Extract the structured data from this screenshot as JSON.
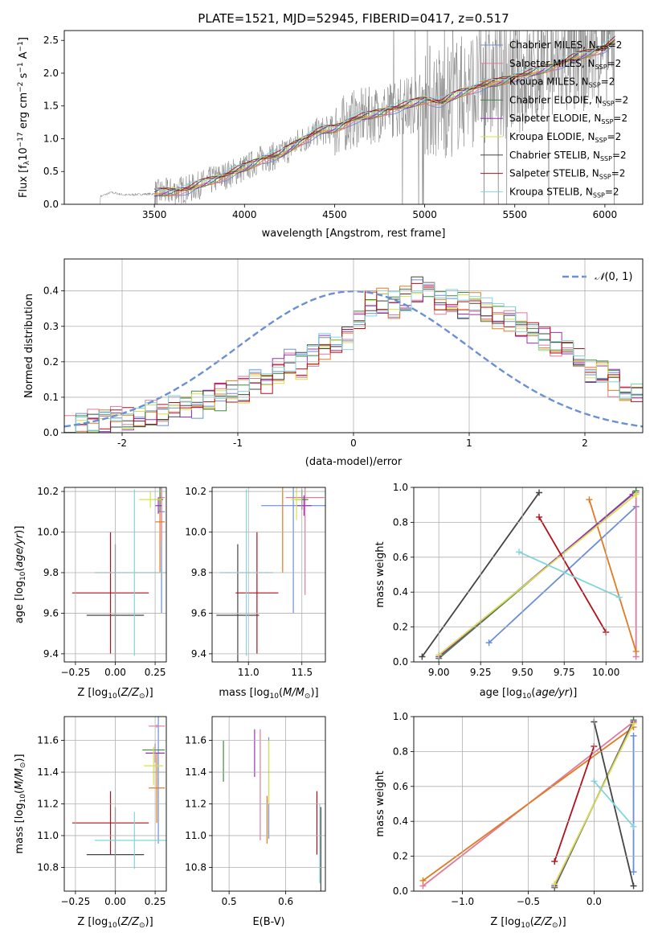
{
  "figure": {
    "title": "PLATE=1521, MJD=52945, FIBERID=0417, z=0.517"
  },
  "colors": {
    "cMILES": "#6a8fd6",
    "sMILES": "#e07a9a",
    "kMILES": "#e07b20",
    "cELODIE": "#3f8a3f",
    "sELODIE": "#9a2fb8",
    "kELODIE": "#d6e04a",
    "cSTELIB": "#444444",
    "sSTELIB": "#b30f1a",
    "kSTELIB": "#7fd6dc",
    "normal": "#6a8fd6",
    "spectrum": "#808080"
  },
  "chart_data": [
    {
      "id": "spectrum",
      "type": "line",
      "title": "PLATE=1521, MJD=52945, FIBERID=0417, z=0.517",
      "xlabel": "wavelength [Angstrom, rest frame]",
      "ylabel": "Flux [f_λ 10^-17 erg cm^-2 s^-1 A^-1]",
      "xlim": [
        3000,
        6210
      ],
      "ylim": [
        0,
        2.65
      ],
      "xticks": [
        3500,
        4000,
        4500,
        5000,
        5500,
        6000
      ],
      "yticks": [
        0.0,
        0.5,
        1.0,
        1.5,
        2.0,
        2.5
      ],
      "grid": false,
      "legend_position": "top-right",
      "continuum": {
        "x": [
          3200,
          3260,
          3300,
          3340,
          3400,
          3500,
          3600,
          3700,
          3800,
          3900,
          4000,
          4100,
          4200,
          4300,
          4400,
          4500,
          4600,
          4700,
          4800,
          4900,
          5000,
          5100,
          5200,
          5300,
          5400,
          5500,
          5600,
          5700,
          5800,
          5900,
          6000,
          6060
        ],
        "y": [
          0.12,
          0.18,
          0.16,
          0.14,
          0.15,
          0.16,
          0.2,
          0.24,
          0.35,
          0.45,
          0.55,
          0.7,
          0.75,
          0.95,
          1.1,
          1.15,
          1.3,
          1.35,
          1.45,
          1.5,
          1.6,
          1.55,
          1.7,
          1.8,
          1.85,
          1.95,
          2.0,
          2.1,
          2.2,
          2.3,
          2.4,
          2.5
        ]
      },
      "series": [
        {
          "name": "Chabrier MILES, N_SSP=2",
          "color": "#6a8fd6"
        },
        {
          "name": "Salpeter MILES, N_SSP=2",
          "color": "#e07a9a"
        },
        {
          "name": "Kroupa MILES, N_SSP=2",
          "color": "#e07b20"
        },
        {
          "name": "Chabrier ELODIE, N_SSP=2",
          "color": "#3f8a3f"
        },
        {
          "name": "Salpeter ELODIE, N_SSP=2",
          "color": "#9a2fb8"
        },
        {
          "name": "Kroupa ELODIE, N_SSP=2",
          "color": "#d6e04a"
        },
        {
          "name": "Chabrier STELIB, N_SSP=2",
          "color": "#444444"
        },
        {
          "name": "Salpeter STELIB, N_SSP=2",
          "color": "#b30f1a"
        },
        {
          "name": "Kroupa STELIB, N_SSP=2",
          "color": "#7fd6dc"
        }
      ]
    },
    {
      "id": "histogram",
      "type": "area",
      "xlabel": "(data-model)/error",
      "ylabel": "Normed distribution",
      "xlim": [
        -2.5,
        2.5
      ],
      "ylim": [
        0,
        0.49
      ],
      "xticks": [
        -2,
        -1,
        0,
        1,
        2
      ],
      "yticks": [
        0.0,
        0.1,
        0.2,
        0.3,
        0.4
      ],
      "grid": true,
      "legend_position": "top-right",
      "legend": "N(0,1)",
      "bin_edges_start": -2.5,
      "bin_width": 0.1,
      "base_counts": [
        0.01,
        0.02,
        0.03,
        0.03,
        0.04,
        0.04,
        0.05,
        0.06,
        0.05,
        0.07,
        0.07,
        0.08,
        0.1,
        0.1,
        0.11,
        0.12,
        0.14,
        0.15,
        0.17,
        0.2,
        0.19,
        0.21,
        0.24,
        0.26,
        0.27,
        0.31,
        0.36,
        0.37,
        0.36,
        0.38,
        0.4,
        0.39,
        0.37,
        0.38,
        0.36,
        0.37,
        0.35,
        0.33,
        0.32,
        0.3,
        0.28,
        0.27,
        0.25,
        0.24,
        0.22,
        0.18,
        0.17,
        0.14,
        0.12,
        0.1
      ]
    },
    {
      "id": "age-vs-Z",
      "type": "scatter",
      "xlabel": "Z [log10(Z/Z⊙)]",
      "ylabel": "age [log10(age/yr)]",
      "xlim": [
        -0.32,
        0.32
      ],
      "ylim": [
        9.36,
        10.22
      ],
      "xticks": [
        -0.25,
        0.0,
        0.25
      ],
      "xtick_labels": [
        "−0.25",
        "0.00",
        "0.25"
      ],
      "yticks": [
        9.4,
        9.6,
        9.8,
        10.0,
        10.2
      ],
      "grid": true,
      "points": [
        {
          "c": "cMILES",
          "x": 0.29,
          "y": 10.1,
          "ex": 0.02,
          "ey": 0.5
        },
        {
          "c": "sMILES",
          "x": 0.29,
          "y": 10.17,
          "ex": 0.02,
          "ey": 0.22
        },
        {
          "c": "kMILES",
          "x": 0.28,
          "y": 10.05,
          "ex": 0.03,
          "ey": 0.25
        },
        {
          "c": "cELODIE",
          "x": 0.28,
          "y": 10.16,
          "ex": 0.02,
          "ey": 0.06
        },
        {
          "c": "sELODIE",
          "x": 0.27,
          "y": 10.13,
          "ex": 0.02,
          "ey": 0.04
        },
        {
          "c": "kELODIE",
          "x": 0.22,
          "y": 10.16,
          "ex": 0.07,
          "ey": 0.04
        },
        {
          "c": "cSTELIB",
          "x": 0.0,
          "y": 9.59,
          "ex": 0.18,
          "ey": 0.35
        },
        {
          "c": "sSTELIB",
          "x": -0.03,
          "y": 9.7,
          "ex": 0.24,
          "ey": 0.3
        },
        {
          "c": "kSTELIB",
          "x": 0.12,
          "y": 9.8,
          "ex": 0.25,
          "ey": 0.41
        }
      ]
    },
    {
      "id": "age-vs-mass",
      "type": "scatter",
      "xlabel": "mass [log10(M/M⊙)]",
      "ylabel": "",
      "xlim": [
        10.66,
        11.72
      ],
      "ylim": [
        9.36,
        10.22
      ],
      "xticks": [
        11.0,
        11.5
      ],
      "xtick_labels": [
        "11.0",
        "11.5"
      ],
      "yticks": [
        9.4,
        9.6,
        9.8,
        10.0,
        10.2
      ],
      "grid": true,
      "points": [
        {
          "c": "cMILES",
          "x": 11.42,
          "y": 10.13,
          "ex": 0.3,
          "ey": 0.53
        },
        {
          "c": "sMILES",
          "x": 11.53,
          "y": 10.17,
          "ex": 0.18,
          "ey": 0.48
        },
        {
          "c": "kMILES",
          "x": 11.32,
          "y": 10.05,
          "ex": 0.0,
          "ey": 0.25
        },
        {
          "c": "cELODIE",
          "x": 11.5,
          "y": 10.16,
          "ex": 0.06,
          "ey": 0.05
        },
        {
          "c": "sELODIE",
          "x": 11.52,
          "y": 10.13,
          "ex": 0.07,
          "ey": 0.05
        },
        {
          "c": "kELODIE",
          "x": 11.45,
          "y": 10.16,
          "ex": 0.05,
          "ey": 0.1
        },
        {
          "c": "cSTELIB",
          "x": 10.9,
          "y": 9.59,
          "ex": 0.2,
          "ey": 0.35
        },
        {
          "c": "sSTELIB",
          "x": 11.08,
          "y": 9.7,
          "ex": 0.2,
          "ey": 0.3
        },
        {
          "c": "kSTELIB",
          "x": 10.98,
          "y": 9.8,
          "ex": 0.25,
          "ey": 0.41
        }
      ]
    },
    {
      "id": "weight-vs-age",
      "type": "line",
      "xlabel": "age [log10(age/yr)]",
      "ylabel": "mass weight",
      "xlim": [
        8.85,
        10.22
      ],
      "ylim": [
        0,
        1.0
      ],
      "xticks": [
        9.0,
        9.25,
        9.5,
        9.75,
        10.0
      ],
      "xtick_labels": [
        "9.00",
        "9.25",
        "9.50",
        "9.75",
        "10.00"
      ],
      "yticks": [
        0.0,
        0.2,
        0.4,
        0.6,
        0.8,
        1.0
      ],
      "grid": true,
      "lines": [
        {
          "c": "cMILES",
          "pts": [
            [
              9.3,
              0.11
            ],
            [
              10.18,
              0.89
            ]
          ]
        },
        {
          "c": "sMILES",
          "pts": [
            [
              10.18,
              0.03
            ],
            [
              10.18,
              0.97
            ]
          ]
        },
        {
          "c": "kMILES",
          "pts": [
            [
              9.9,
              0.93
            ],
            [
              10.18,
              0.06
            ]
          ]
        },
        {
          "c": "cELODIE",
          "pts": [
            [
              9.0,
              0.02
            ],
            [
              10.18,
              0.98
            ]
          ]
        },
        {
          "c": "sELODIE",
          "pts": [
            [
              9.0,
              0.03
            ],
            [
              10.16,
              0.96
            ]
          ]
        },
        {
          "c": "kELODIE",
          "pts": [
            [
              9.0,
              0.04
            ],
            [
              10.18,
              0.96
            ]
          ]
        },
        {
          "c": "cSTELIB",
          "pts": [
            [
              8.9,
              0.03
            ],
            [
              9.6,
              0.97
            ]
          ]
        },
        {
          "c": "sSTELIB",
          "pts": [
            [
              9.6,
              0.83
            ],
            [
              10.0,
              0.17
            ]
          ]
        },
        {
          "c": "kSTELIB",
          "pts": [
            [
              9.48,
              0.63
            ],
            [
              10.08,
              0.37
            ]
          ]
        }
      ]
    },
    {
      "id": "mass-vs-Z",
      "type": "scatter",
      "xlabel": "Z [log10(Z/Z⊙)]",
      "ylabel": "mass [log10(M/M⊙)]",
      "xlim": [
        -0.32,
        0.32
      ],
      "ylim": [
        10.65,
        11.75
      ],
      "xticks": [
        -0.25,
        0.0,
        0.25
      ],
      "xtick_labels": [
        "−0.25",
        "0.00",
        "0.25"
      ],
      "yticks": [
        10.8,
        11.0,
        11.2,
        11.4,
        11.6
      ],
      "grid": true,
      "points": [
        {
          "c": "cMILES",
          "x": 0.27,
          "y": 11.4,
          "ex": 0.04,
          "ey": 0.45
        },
        {
          "c": "sMILES",
          "x": 0.26,
          "y": 11.69,
          "ex": 0.05,
          "ey": 0.01
        },
        {
          "c": "kMILES",
          "x": 0.26,
          "y": 11.3,
          "ex": 0.05,
          "ey": 0.22
        },
        {
          "c": "cELODIE",
          "x": 0.24,
          "y": 11.54,
          "ex": 0.07,
          "ey": 0.01
        },
        {
          "c": "sELODIE",
          "x": 0.25,
          "y": 11.52,
          "ex": 0.06,
          "ey": 0.06
        },
        {
          "c": "kELODIE",
          "x": 0.24,
          "y": 11.44,
          "ex": 0.06,
          "ey": 0.12
        },
        {
          "c": "cSTELIB",
          "x": 0.0,
          "y": 10.88,
          "ex": 0.18,
          "ey": 0.3
        },
        {
          "c": "sSTELIB",
          "x": -0.03,
          "y": 11.08,
          "ex": 0.24,
          "ey": 0.2
        },
        {
          "c": "kSTELIB",
          "x": 0.12,
          "y": 10.97,
          "ex": 0.25,
          "ey": 0.18
        }
      ]
    },
    {
      "id": "mass-vs-ebv",
      "type": "scatter",
      "xlabel": "E(B-V)",
      "ylabel": "",
      "xlim": [
        0.47,
        0.67
      ],
      "ylim": [
        10.65,
        11.75
      ],
      "xticks": [
        0.5,
        0.6
      ],
      "xtick_labels": [
        "0.5",
        "0.6"
      ],
      "yticks": [
        10.8,
        11.0,
        11.2,
        11.4,
        11.6
      ],
      "grid": true,
      "points": [
        {
          "c": "cMILES",
          "x": 0.57,
          "y": 11.3,
          "ex": 0.0,
          "ey": 0.32
        },
        {
          "c": "sMILES",
          "x": 0.555,
          "y": 11.32,
          "ex": 0.0,
          "ey": 0.35
        },
        {
          "c": "kMILES",
          "x": 0.567,
          "y": 11.1,
          "ex": 0.0,
          "ey": 0.15
        },
        {
          "c": "cELODIE",
          "x": 0.49,
          "y": 11.47,
          "ex": 0.0,
          "ey": 0.13
        },
        {
          "c": "sELODIE",
          "x": 0.545,
          "y": 11.52,
          "ex": 0.0,
          "ey": 0.15
        },
        {
          "c": "kELODIE",
          "x": 0.57,
          "y": 11.4,
          "ex": 0.0,
          "ey": 0.2
        },
        {
          "c": "cSTELIB",
          "x": 0.662,
          "y": 10.9,
          "ex": 0.0,
          "ey": 0.28
        },
        {
          "c": "sSTELIB",
          "x": 0.655,
          "y": 11.08,
          "ex": 0.0,
          "ey": 0.2
        },
        {
          "c": "kSTELIB",
          "x": 0.66,
          "y": 10.95,
          "ex": 0.0,
          "ey": 0.25
        }
      ]
    },
    {
      "id": "weight-vs-Z",
      "type": "line",
      "xlabel": "Z [log10(Z/Z⊙)]",
      "ylabel": "mass weight",
      "xlim": [
        -1.37,
        0.37
      ],
      "ylim": [
        0,
        1.0
      ],
      "xticks": [
        -1.0,
        -0.5,
        0.0
      ],
      "xtick_labels": [
        "−1.0",
        "−0.5",
        "0.0"
      ],
      "yticks": [
        0.0,
        0.2,
        0.4,
        0.6,
        0.8,
        1.0
      ],
      "grid": true,
      "lines": [
        {
          "c": "cMILES",
          "pts": [
            [
              0.3,
              0.11
            ],
            [
              0.3,
              0.89
            ]
          ]
        },
        {
          "c": "sMILES",
          "pts": [
            [
              -1.3,
              0.03
            ],
            [
              0.3,
              0.97
            ]
          ]
        },
        {
          "c": "kMILES",
          "pts": [
            [
              -1.3,
              0.06
            ],
            [
              0.3,
              0.94
            ]
          ]
        },
        {
          "c": "cELODIE",
          "pts": [
            [
              -0.3,
              0.02
            ],
            [
              0.3,
              0.98
            ]
          ]
        },
        {
          "c": "sELODIE",
          "pts": [
            [
              -0.3,
              0.03
            ],
            [
              0.3,
              0.97
            ]
          ]
        },
        {
          "c": "kELODIE",
          "pts": [
            [
              -0.3,
              0.04
            ],
            [
              0.3,
              0.96
            ]
          ]
        },
        {
          "c": "cSTELIB",
          "pts": [
            [
              0.0,
              0.97
            ],
            [
              0.3,
              0.03
            ]
          ]
        },
        {
          "c": "sSTELIB",
          "pts": [
            [
              -0.3,
              0.17
            ],
            [
              0.0,
              0.83
            ]
          ]
        },
        {
          "c": "kSTELIB",
          "pts": [
            [
              0.0,
              0.63
            ],
            [
              0.3,
              0.37
            ]
          ]
        }
      ]
    }
  ]
}
